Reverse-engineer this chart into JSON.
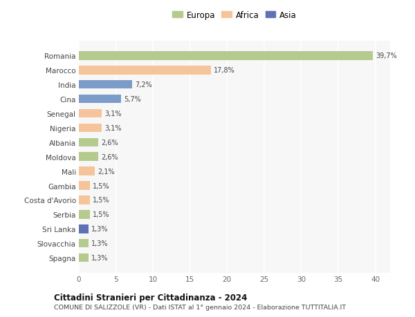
{
  "categories": [
    "Romania",
    "Marocco",
    "India",
    "Cina",
    "Senegal",
    "Nigeria",
    "Albania",
    "Moldova",
    "Mali",
    "Gambia",
    "Costa d'Avorio",
    "Serbia",
    "Sri Lanka",
    "Slovacchia",
    "Spagna"
  ],
  "values": [
    39.7,
    17.8,
    7.2,
    5.7,
    3.1,
    3.1,
    2.6,
    2.6,
    2.1,
    1.5,
    1.5,
    1.5,
    1.3,
    1.3,
    1.3
  ],
  "labels": [
    "39,7%",
    "17,8%",
    "7,2%",
    "5,7%",
    "3,1%",
    "3,1%",
    "2,6%",
    "2,6%",
    "2,1%",
    "1,5%",
    "1,5%",
    "1,5%",
    "1,3%",
    "1,3%",
    "1,3%"
  ],
  "colors": [
    "#b5ca8d",
    "#f5c49a",
    "#7b9bc8",
    "#7b9bc8",
    "#f5c49a",
    "#f5c49a",
    "#b5ca8d",
    "#b5ca8d",
    "#f5c49a",
    "#f5c49a",
    "#f5c49a",
    "#b5ca8d",
    "#6070b5",
    "#b5ca8d",
    "#b5ca8d"
  ],
  "continents": [
    "Europa",
    "Africa",
    "Asia"
  ],
  "legend_colors": [
    "#b5ca8d",
    "#f5c49a",
    "#6070b5"
  ],
  "title1": "Cittadini Stranieri per Cittadinanza - 2024",
  "title2": "COMUNE DI SALIZZOLE (VR) - Dati ISTAT al 1° gennaio 2024 - Elaborazione TUTTITALIA.IT",
  "xlim": [
    0,
    42
  ],
  "xticks": [
    0,
    5,
    10,
    15,
    20,
    25,
    30,
    35,
    40
  ],
  "bg_color": "#ffffff",
  "plot_bg_color": "#f7f7f7"
}
